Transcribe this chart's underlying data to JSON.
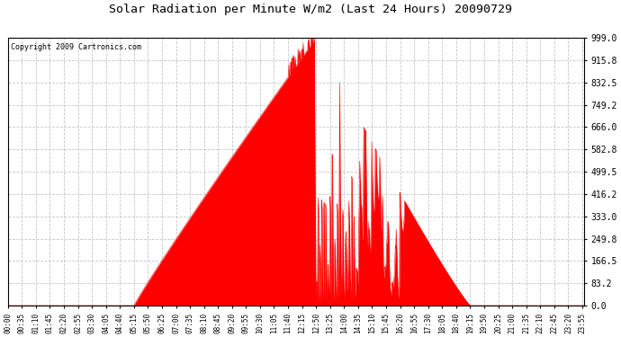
{
  "title": "Solar Radiation per Minute W/m2 (Last 24 Hours) 20090729",
  "copyright": "Copyright 2009 Cartronics.com",
  "background_color": "#ffffff",
  "plot_bg_color": "#ffffff",
  "line_color": "#ff0000",
  "fill_color": "#ff0000",
  "grid_color": "#c0c0c0",
  "dashed_line_color": "#ff0000",
  "ymin": 0.0,
  "ymax": 999.0,
  "ytick_values": [
    0.0,
    83.2,
    166.5,
    249.8,
    333.0,
    416.2,
    499.5,
    582.8,
    666.0,
    749.2,
    832.5,
    915.8,
    999.0
  ],
  "num_minutes": 1440,
  "sunrise_minute": 315,
  "sunset_minute": 1155,
  "peak_minute": 770,
  "peak_value": 999.0
}
